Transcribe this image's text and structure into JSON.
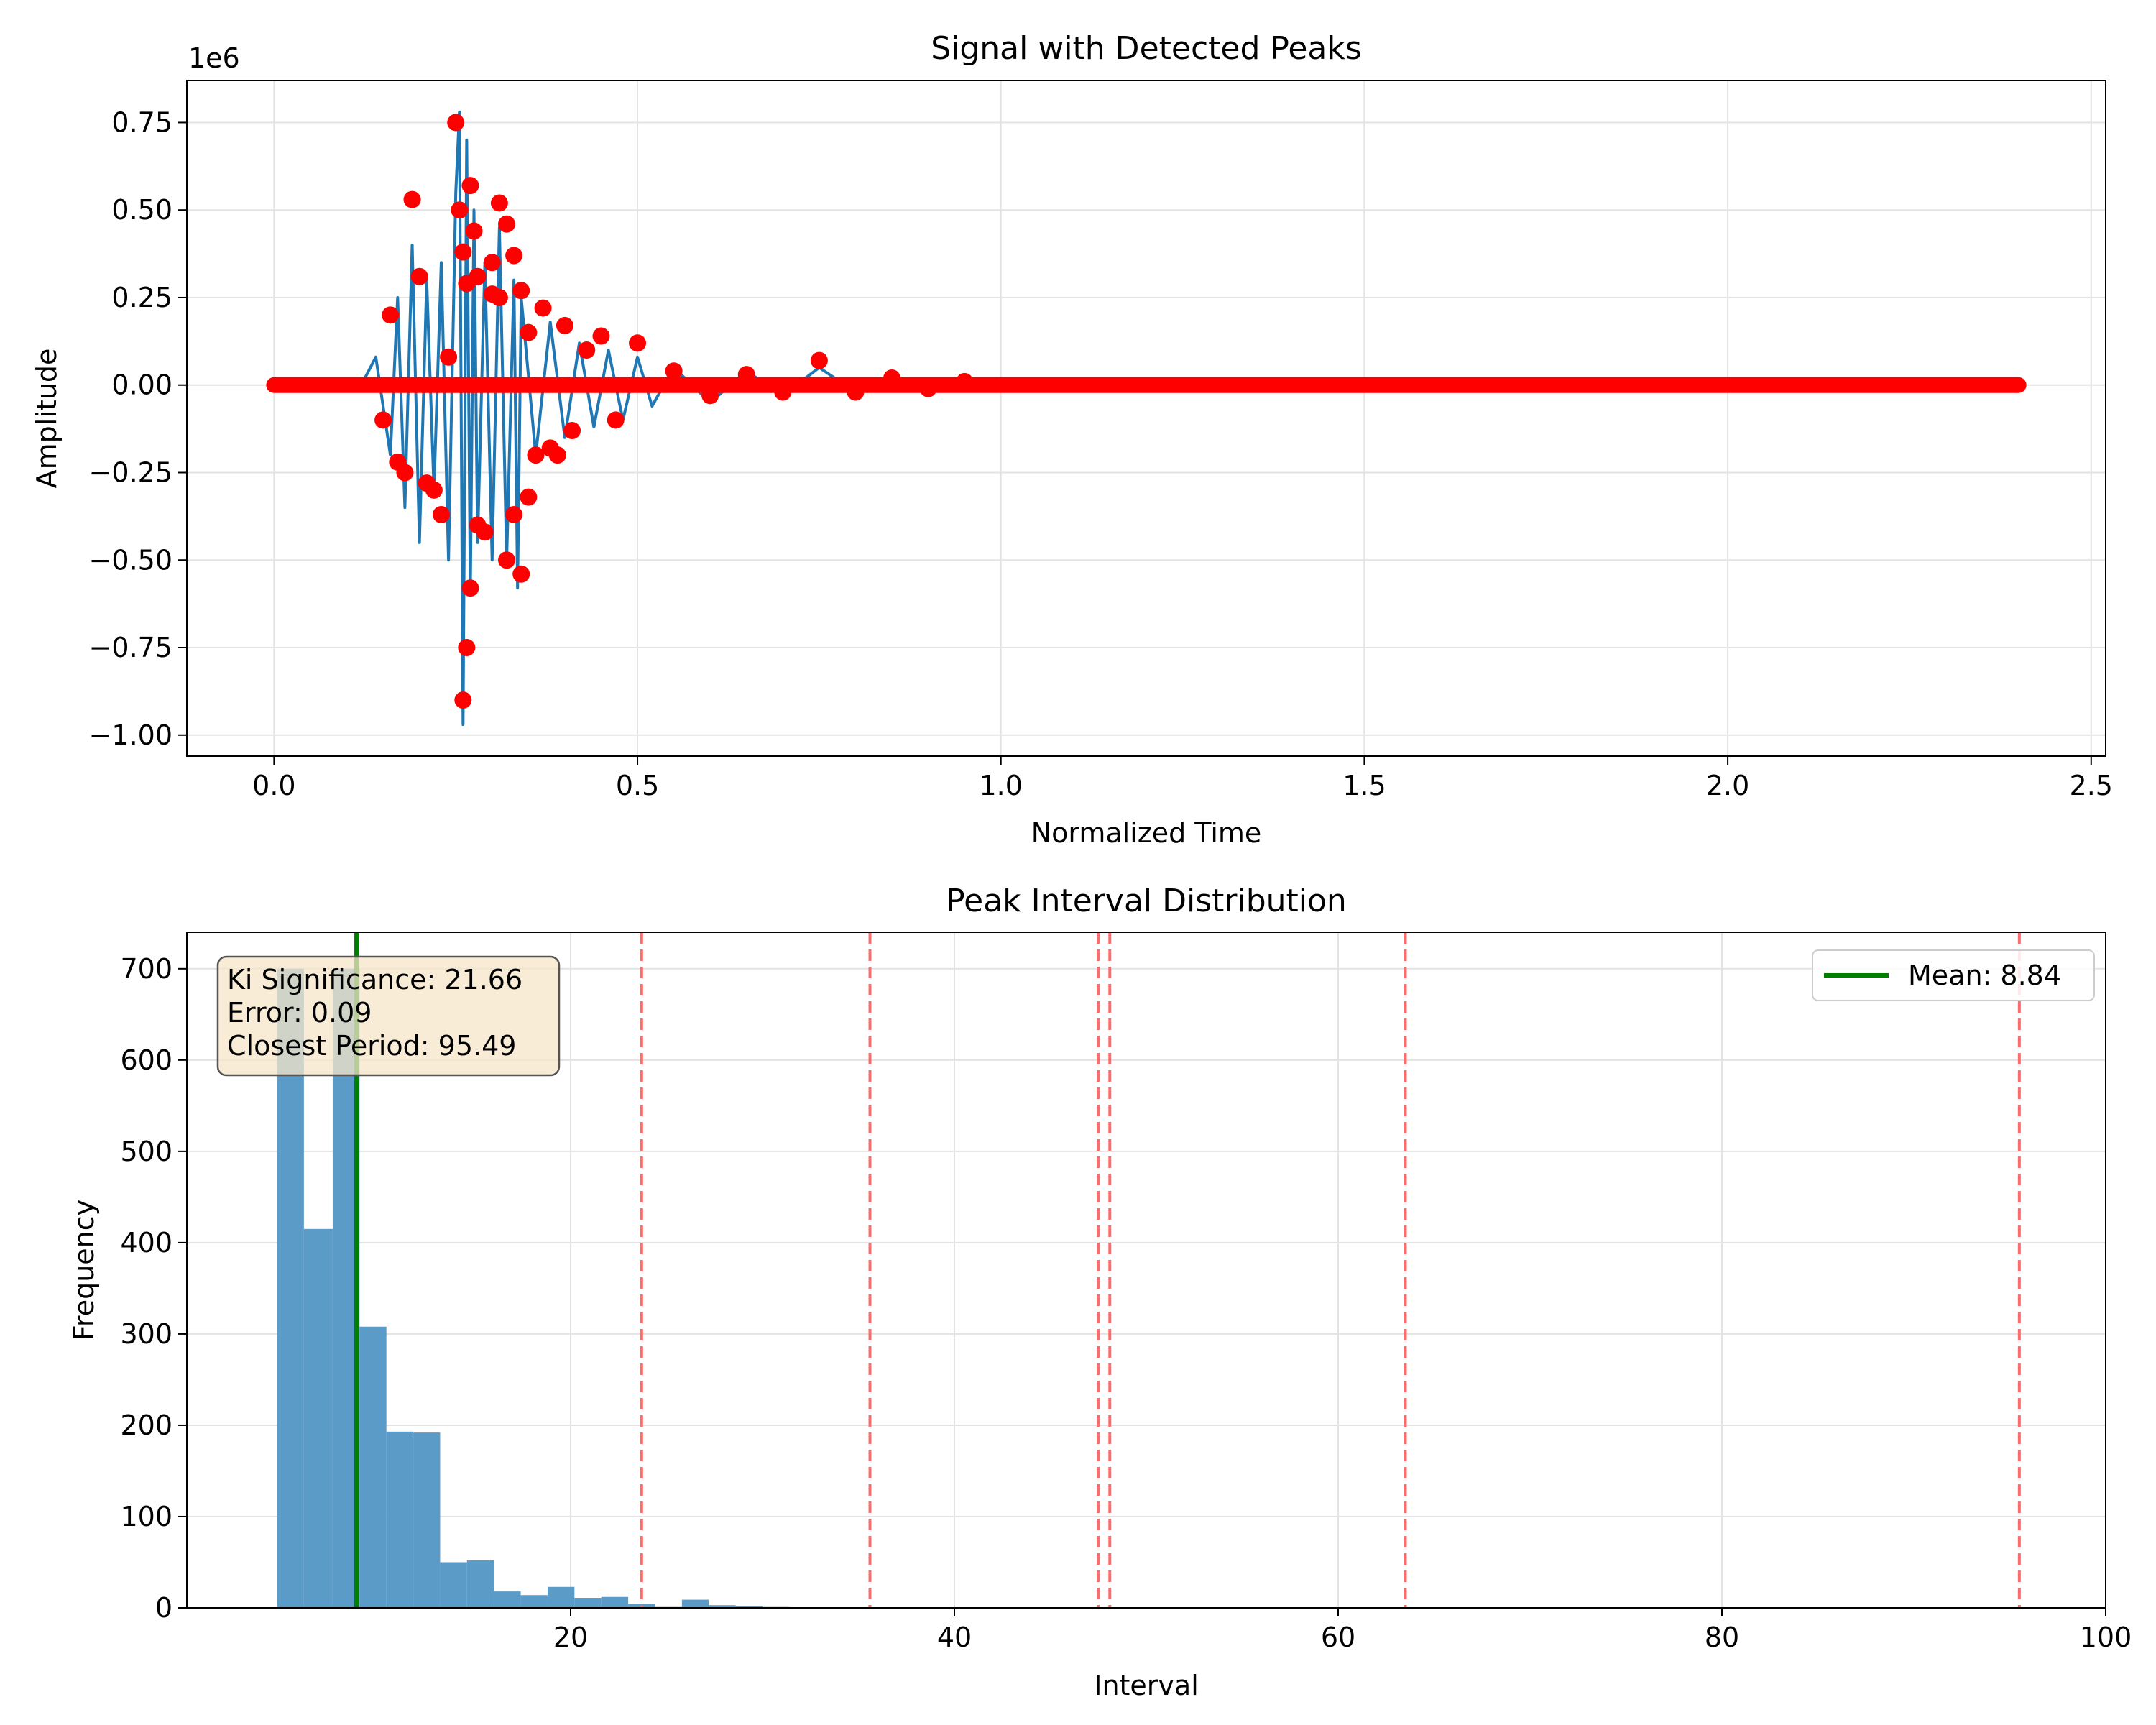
{
  "chart_data": [
    {
      "type": "line",
      "title": "Signal with Detected Peaks",
      "xlabel": "Normalized Time",
      "ylabel": "Amplitude",
      "y_offset_label": "1e6",
      "xlim": [
        -0.12,
        2.52
      ],
      "ylim": [
        -1.06,
        0.87
      ],
      "x_ticks": [
        0.0,
        0.5,
        1.0,
        1.5,
        2.0,
        2.5
      ],
      "x_tick_labels": [
        "0.0",
        "0.5",
        "1.0",
        "1.5",
        "2.0",
        "2.5"
      ],
      "y_ticks": [
        0.75,
        0.5,
        0.25,
        0.0,
        -0.25,
        -0.5,
        -0.75,
        -1.0
      ],
      "y_tick_labels": [
        "0.75",
        "0.50",
        "0.25",
        "0.00",
        "−0.25",
        "−0.50",
        "−0.75",
        "−1.00"
      ],
      "grid": true,
      "colors": {
        "signal": "#1f77b4",
        "peaks": "#ff0000"
      },
      "series": [
        {
          "kind": "line",
          "x": [
            0.0,
            0.12,
            0.14,
            0.16,
            0.17,
            0.18,
            0.19,
            0.2,
            0.21,
            0.22,
            0.23,
            0.24,
            0.25,
            0.255,
            0.26,
            0.265,
            0.27,
            0.275,
            0.28,
            0.29,
            0.3,
            0.31,
            0.32,
            0.33,
            0.335,
            0.34,
            0.36,
            0.38,
            0.4,
            0.42,
            0.44,
            0.46,
            0.48,
            0.5,
            0.52,
            0.55,
            0.6,
            0.65,
            0.7,
            0.75,
            0.8,
            0.85,
            0.9,
            0.95,
            1.0,
            2.4
          ],
          "y": [
            0.0,
            0.0,
            0.08,
            -0.2,
            0.25,
            -0.35,
            0.4,
            -0.45,
            0.3,
            -0.3,
            0.35,
            -0.5,
            0.55,
            0.78,
            -0.97,
            0.7,
            -0.6,
            0.5,
            -0.45,
            0.35,
            -0.5,
            0.45,
            -0.5,
            0.3,
            -0.58,
            0.25,
            -0.2,
            0.18,
            -0.15,
            0.12,
            -0.12,
            0.1,
            -0.1,
            0.08,
            -0.06,
            0.05,
            -0.05,
            0.04,
            -0.03,
            0.05,
            -0.02,
            0.02,
            -0.015,
            0.01,
            0.0,
            0.0
          ]
        },
        {
          "kind": "scatter",
          "x": [
            0.19,
            0.25,
            0.255,
            0.26,
            0.265,
            0.27,
            0.275,
            0.28,
            0.3,
            0.31,
            0.32,
            0.33,
            0.34,
            0.37,
            0.4,
            0.45,
            0.5,
            0.3,
            0.26,
            0.265,
            0.27,
            0.28,
            0.32,
            0.33,
            0.34,
            0.35,
            0.36,
            0.38,
            0.41,
            0.47,
            0.23,
            0.21,
            0.18,
            0.17,
            0.15,
            0.16,
            0.2,
            0.22,
            0.24,
            0.29,
            0.31,
            0.35,
            0.39,
            0.43,
            0.55,
            0.6,
            0.65,
            0.7,
            0.75,
            0.8,
            0.85,
            0.9,
            0.95
          ],
          "y": [
            0.53,
            0.75,
            0.5,
            0.38,
            0.29,
            0.57,
            0.44,
            0.31,
            0.35,
            0.52,
            0.46,
            0.37,
            0.27,
            0.22,
            0.17,
            0.14,
            0.12,
            0.26,
            -0.9,
            -0.75,
            -0.58,
            -0.4,
            -0.5,
            -0.37,
            -0.54,
            -0.32,
            -0.2,
            -0.18,
            -0.13,
            -0.1,
            -0.37,
            -0.28,
            -0.25,
            -0.22,
            -0.1,
            0.2,
            0.31,
            -0.3,
            0.08,
            -0.42,
            0.25,
            0.15,
            -0.2,
            0.1,
            0.04,
            -0.03,
            0.03,
            -0.02,
            0.07,
            -0.02,
            0.02,
            -0.01,
            0.01
          ],
          "baseline_x_range": [
            0.0,
            2.4
          ],
          "baseline_y": 0.0
        }
      ]
    },
    {
      "type": "bar",
      "title": "Peak Interval Distribution",
      "xlabel": "Interval",
      "ylabel": "Frequency",
      "xlim": [
        0,
        100
      ],
      "ylim": [
        0,
        740
      ],
      "x_ticks": [
        20,
        40,
        60,
        80,
        100
      ],
      "x_tick_labels": [
        "20",
        "40",
        "60",
        "80",
        "100"
      ],
      "y_ticks": [
        0,
        100,
        200,
        300,
        400,
        500,
        600,
        700
      ],
      "y_tick_labels": [
        "0",
        "100",
        "200",
        "300",
        "400",
        "500",
        "600",
        "700"
      ],
      "grid": true,
      "colors": {
        "bars": "#5b9bc8",
        "mean_line": "#007f00",
        "ref_lines": "#ff6b6b",
        "box_fill": "#f5e6c8"
      },
      "bins": [
        {
          "x0": 4.7,
          "x1": 6.1,
          "value": 700
        },
        {
          "x0": 6.1,
          "x1": 7.6,
          "value": 415
        },
        {
          "x0": 7.6,
          "x1": 9.0,
          "value": 700
        },
        {
          "x0": 9.0,
          "x1": 10.4,
          "value": 308
        },
        {
          "x0": 10.4,
          "x1": 11.8,
          "value": 193
        },
        {
          "x0": 11.8,
          "x1": 13.2,
          "value": 192
        },
        {
          "x0": 13.2,
          "x1": 14.6,
          "value": 50
        },
        {
          "x0": 14.6,
          "x1": 16.0,
          "value": 52
        },
        {
          "x0": 16.0,
          "x1": 17.4,
          "value": 18
        },
        {
          "x0": 17.4,
          "x1": 18.8,
          "value": 14
        },
        {
          "x0": 18.8,
          "x1": 20.2,
          "value": 23
        },
        {
          "x0": 20.2,
          "x1": 21.6,
          "value": 11
        },
        {
          "x0": 21.6,
          "x1": 23.0,
          "value": 12
        },
        {
          "x0": 23.0,
          "x1": 24.4,
          "value": 4
        },
        {
          "x0": 24.4,
          "x1": 25.8,
          "value": 1
        },
        {
          "x0": 25.8,
          "x1": 27.2,
          "value": 9
        },
        {
          "x0": 27.2,
          "x1": 28.6,
          "value": 3
        },
        {
          "x0": 28.6,
          "x1": 30.0,
          "value": 2
        },
        {
          "x0": 30.0,
          "x1": 31.4,
          "value": 1
        }
      ],
      "mean_line": {
        "x": 8.84,
        "label": "Mean: 8.84"
      },
      "reference_lines_x": [
        23.7,
        35.6,
        47.5,
        48.1,
        63.5,
        95.5
      ],
      "legend_position": "top-right",
      "annotation": {
        "lines": [
          "Ki Significance: 21.66",
          "Error: 0.09",
          "Closest Period: 95.49"
        ],
        "position": "top-left"
      }
    }
  ]
}
